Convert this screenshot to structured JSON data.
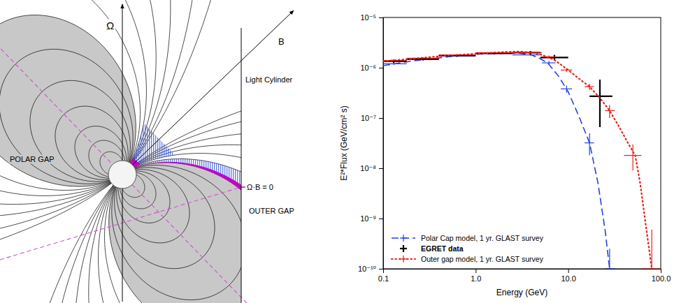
{
  "diagram": {
    "labels": {
      "omega": "Ω",
      "b": "B",
      "light_cylinder": "Light Cylinder",
      "null_surface": "Ω·B = 0",
      "polar_gap": "POLAR GAP",
      "outer_gap": "OUTER GAP"
    }
  },
  "chart_data": {
    "type": "line",
    "x_label": "Energy (GeV)",
    "y_label": "E²*Flux (GeV/cm² s)",
    "log": true,
    "grid": false,
    "legend": "lower left",
    "xlim": [
      0.1,
      100
    ],
    "xticks": [
      0.1,
      {
        "value": 1,
        "label": "1.0"
      },
      {
        "value": 10,
        "label": "10.0"
      },
      {
        "value": 100,
        "label": "100.0"
      }
    ],
    "ylim": [
      1e-10,
      1e-05
    ],
    "yticks": [
      {
        "value": 1e-10,
        "label": "10⁻¹⁰"
      },
      {
        "value": 1e-09,
        "label": "10⁻⁹"
      },
      {
        "value": 1e-08,
        "label": "10⁻⁸"
      },
      {
        "value": 1e-07,
        "label": "10⁻⁷"
      },
      {
        "value": 1e-06,
        "label": "10⁻⁶"
      },
      {
        "value": 1e-05,
        "label": "10⁻⁵"
      }
    ],
    "series": [
      {
        "name": "Polar Cap model, 1 yr. GLAST survey",
        "type": "line",
        "color": "#2244dd",
        "line_style": "dashed",
        "marker": "cross",
        "x": [
          0.1,
          0.2,
          0.5,
          1,
          2,
          3,
          4,
          5,
          6,
          8,
          10,
          13,
          17,
          21,
          25,
          28
        ],
        "values": [
          1.1e-06,
          1.35e-06,
          1.65e-06,
          1.85e-06,
          1.95e-06,
          1.95e-06,
          1.8e-06,
          1.5e-06,
          1.25e-06,
          6.5e-07,
          3.3e-07,
          1.1e-07,
          3.2e-08,
          5e-09,
          6e-10,
          1e-10
        ],
        "points": {
          "x": [
            0.13,
            0.27,
            0.63,
            1.6,
            3.9,
            6.2,
            9.6,
            17,
            28
          ],
          "values": [
            1.2e-06,
            1.45e-06,
            1.7e-06,
            1.9e-06,
            1.8e-06,
            1.25e-06,
            3.8e-07,
            3.2e-08,
            1e-10
          ],
          "x_low": [
            0.1,
            0.18,
            0.4,
            1.0,
            2.5,
            5.2,
            8.3,
            15,
            25
          ],
          "x_high": [
            0.18,
            0.4,
            1.0,
            2.5,
            5.2,
            7.3,
            11,
            19,
            32
          ],
          "y_low": [
            1.15e-06,
            1.4e-06,
            1.65e-06,
            1.85e-06,
            1.75e-06,
            1.15e-06,
            3.2e-07,
            1.8e-08,
            1e-10
          ],
          "y_high": [
            1.25e-06,
            1.5e-06,
            1.75e-06,
            1.95e-06,
            1.85e-06,
            1.35e-06,
            4.4e-07,
            5e-08,
            2.5e-10
          ]
        }
      },
      {
        "name": "EGRET data",
        "type": "errorbar",
        "color": "#000000",
        "marker": "cross",
        "x": [
          0.13,
          0.27,
          0.63,
          1.6,
          3.9,
          7.1,
          22
        ],
        "values": [
          1.35e-06,
          1.5e-06,
          1.75e-06,
          1.95e-06,
          2e-06,
          1.6e-06,
          2.7e-07
        ],
        "x_low": [
          0.1,
          0.18,
          0.4,
          1.0,
          2.5,
          5.0,
          17
        ],
        "x_high": [
          0.18,
          0.4,
          1.0,
          2.5,
          5.0,
          10,
          30
        ],
        "y_low": [
          1.25e-06,
          1.4e-06,
          1.65e-06,
          1.85e-06,
          1.85e-06,
          1.4e-06,
          6.6e-08
        ],
        "y_high": [
          1.45e-06,
          1.6e-06,
          1.85e-06,
          2.05e-06,
          2.15e-06,
          1.8e-06,
          5.8e-07
        ]
      },
      {
        "name": "Outer gap model, 1 yr. GLAST survey",
        "type": "line",
        "color": "#e8201a",
        "line_style": "dotted",
        "marker": "cross",
        "x": [
          0.1,
          0.2,
          0.5,
          1,
          2,
          3,
          4,
          5,
          7,
          10,
          14,
          17,
          22,
          28,
          35,
          45,
          53,
          60,
          70,
          80
        ],
        "values": [
          1.35e-06,
          1.5e-06,
          1.75e-06,
          1.9e-06,
          2.05e-06,
          2.1e-06,
          2e-06,
          1.85e-06,
          1.45e-06,
          9e-07,
          5.5e-07,
          4.2e-07,
          2.5e-07,
          1.4e-07,
          7e-08,
          3e-08,
          1.8e-08,
          5e-09,
          6e-10,
          1e-10
        ],
        "points": {
          "x": [
            0.13,
            0.27,
            0.63,
            1.6,
            3.9,
            6.2,
            9.6,
            17,
            28,
            50,
            80
          ],
          "values": [
            1.4e-06,
            1.55e-06,
            1.8e-06,
            2e-06,
            2e-06,
            1.65e-06,
            9e-07,
            4.2e-07,
            1.4e-07,
            1.8e-08,
            1e-10
          ],
          "x_low": [
            0.1,
            0.18,
            0.4,
            1.0,
            2.5,
            5.2,
            8.3,
            15,
            25,
            40,
            62
          ],
          "x_high": [
            0.18,
            0.4,
            1.0,
            2.5,
            5.2,
            7.3,
            11,
            19,
            32,
            62,
            100
          ],
          "y_low": [
            1.35e-06,
            1.5e-06,
            1.75e-06,
            1.95e-06,
            1.95e-06,
            1.55e-06,
            8.2e-07,
            3.6e-07,
            1e-07,
            9e-09,
            1e-10
          ],
          "y_high": [
            1.45e-06,
            1.6e-06,
            1.85e-06,
            2.05e-06,
            2.05e-06,
            1.75e-06,
            9.8e-07,
            4.8e-07,
            1.8e-07,
            3e-08,
            6e-10
          ]
        }
      }
    ]
  }
}
